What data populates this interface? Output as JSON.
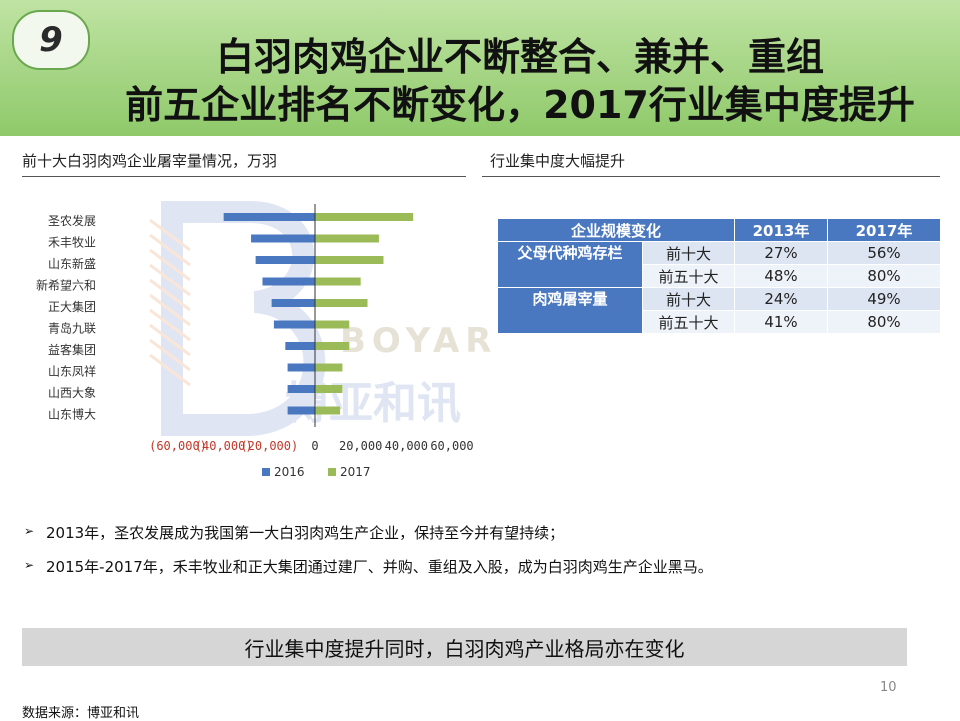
{
  "slide": {
    "number": "9",
    "title_line1": "白羽肉鸡企业不断整合、兼并、重组",
    "title_line2": "前五企业排名不断变化，2017行业集中度提升"
  },
  "left_section": {
    "title": "前十大白羽肉鸡企业屠宰量情况，万羽"
  },
  "right_section": {
    "title": "行业集中度大幅提升"
  },
  "watermark": {
    "latin": "BOYAR",
    "chinese": "博亚和讯"
  },
  "chart_data": {
    "type": "bar",
    "orientation": "horizontal",
    "title": "前十大白羽肉鸡企业屠宰量情况，万羽",
    "categories": [
      "圣农发展",
      "禾丰牧业",
      "山东新盛",
      "新希望六和",
      "正大集团",
      "青岛九联",
      "益客集团",
      "山东凤祥",
      "山西大象",
      "山东博大"
    ],
    "series": [
      {
        "name": "2016",
        "color": "#4a78c0",
        "values": [
          -40000,
          -28000,
          -26000,
          -23000,
          -19000,
          -18000,
          -13000,
          -12000,
          -12000,
          -12000
        ]
      },
      {
        "name": "2017",
        "color": "#9bbb59",
        "values": [
          43000,
          28000,
          30000,
          20000,
          23000,
          15000,
          15000,
          12000,
          12000,
          11000
        ]
      }
    ],
    "xlim": [
      -60000,
      60000
    ],
    "x_ticks": [
      -60000,
      -40000,
      -20000,
      0,
      20000,
      40000,
      60000
    ],
    "x_tick_labels": [
      "(60,000)",
      "(40,000)",
      "(20,000)",
      "0",
      "20,000",
      "40,000",
      "60,000"
    ],
    "legend_position": "bottom",
    "grid": false
  },
  "table": {
    "headers": [
      "企业规模变化",
      "2013年",
      "2017年"
    ],
    "groups": [
      {
        "name": "父母代种鸡存栏",
        "rows": [
          {
            "label": "前十大",
            "v2013": "27%",
            "v2017": "56%"
          },
          {
            "label": "前五十大",
            "v2013": "48%",
            "v2017": "80%"
          }
        ]
      },
      {
        "name": "肉鸡屠宰量",
        "rows": [
          {
            "label": "前十大",
            "v2013": "24%",
            "v2017": "49%"
          },
          {
            "label": "前五十大",
            "v2013": "41%",
            "v2017": "80%"
          }
        ]
      }
    ]
  },
  "bullets": [
    "2013年，圣农发展成为我国第一大白羽肉鸡生产企业，保持至今并有望持续；",
    "2015年-2017年，禾丰牧业和正大集团通过建厂、并购、重组及入股，成为白羽肉鸡生产企业黑马。"
  ],
  "banner": {
    "text": "行业集中度提升同时，白羽肉鸡产业格局亦在变化"
  },
  "page_number": "10",
  "source": "数据来源：博亚和讯"
}
